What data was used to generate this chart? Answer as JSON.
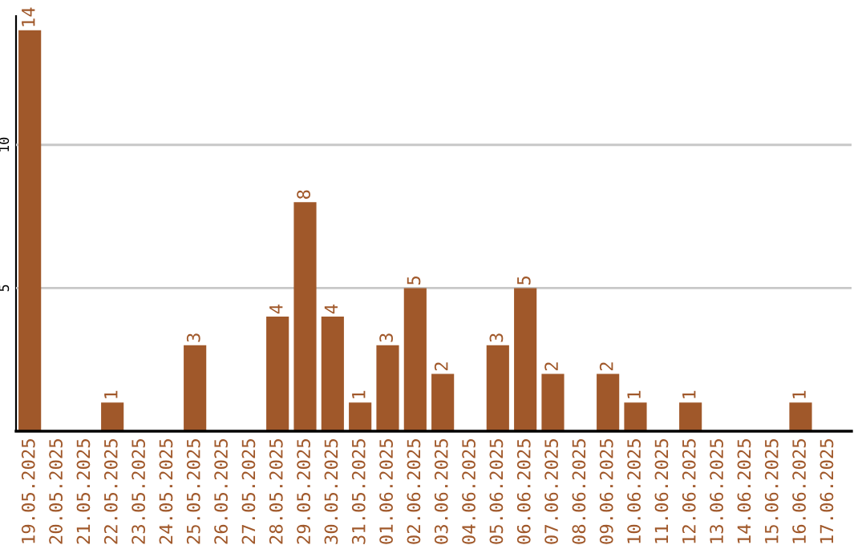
{
  "chart_data": {
    "type": "bar",
    "categories": [
      "19.05.2025",
      "20.05.2025",
      "21.05.2025",
      "22.05.2025",
      "23.05.2025",
      "24.05.2025",
      "25.05.2025",
      "26.05.2025",
      "27.05.2025",
      "28.05.2025",
      "29.05.2025",
      "30.05.2025",
      "31.05.2025",
      "01.06.2025",
      "02.06.2025",
      "03.06.2025",
      "04.06.2025",
      "05.06.2025",
      "06.06.2025",
      "07.06.2025",
      "08.06.2025",
      "09.06.2025",
      "10.06.2025",
      "11.06.2025",
      "12.06.2025",
      "13.06.2025",
      "14.06.2025",
      "15.06.2025",
      "16.06.2025",
      "17.06.2025"
    ],
    "values": [
      14,
      0,
      0,
      1,
      0,
      0,
      3,
      0,
      0,
      4,
      8,
      4,
      1,
      3,
      5,
      2,
      0,
      3,
      5,
      2,
      0,
      2,
      1,
      0,
      1,
      0,
      0,
      0,
      1,
      0
    ],
    "value_labels": [
      "14",
      null,
      null,
      "1",
      null,
      null,
      "3",
      null,
      null,
      "4",
      "8",
      "4",
      "1",
      "3",
      "5",
      "2",
      null,
      "3",
      "5",
      "2",
      null,
      "2",
      "1",
      null,
      "1",
      null,
      null,
      null,
      "1",
      null
    ],
    "color": "#a0582a",
    "ylim": [
      0,
      14.5
    ],
    "yticks": [
      5,
      10
    ],
    "grid": "y",
    "legend": false
  }
}
